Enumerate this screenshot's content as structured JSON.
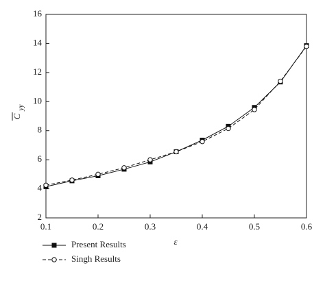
{
  "chart_data": {
    "type": "line",
    "xlabel": "ε",
    "ylabel": "C",
    "ylabel_subscript": "yy",
    "x": [
      0.1,
      0.15,
      0.2,
      0.25,
      0.3,
      0.35,
      0.4,
      0.45,
      0.5,
      0.55,
      0.6
    ],
    "series": [
      {
        "name": "Present Results",
        "color": "#111111",
        "dash": false,
        "marker": "square",
        "values": [
          4.15,
          4.55,
          4.9,
          5.35,
          5.85,
          6.55,
          7.35,
          8.3,
          9.6,
          11.35,
          13.85
        ]
      },
      {
        "name": "Singh Results",
        "color": "#111111",
        "dash": true,
        "marker": "circle",
        "values": [
          4.25,
          4.6,
          5.0,
          5.45,
          6.0,
          6.55,
          7.25,
          8.15,
          9.45,
          11.4,
          13.8
        ]
      }
    ],
    "xlim": [
      0.1,
      0.6
    ],
    "xticks": [
      0.1,
      0.2,
      0.3,
      0.4,
      0.5,
      0.6
    ],
    "ylim": [
      2,
      16
    ],
    "yticks": [
      2,
      4,
      6,
      8,
      10,
      12,
      14,
      16
    ],
    "grid": false,
    "legend": "below-left"
  }
}
